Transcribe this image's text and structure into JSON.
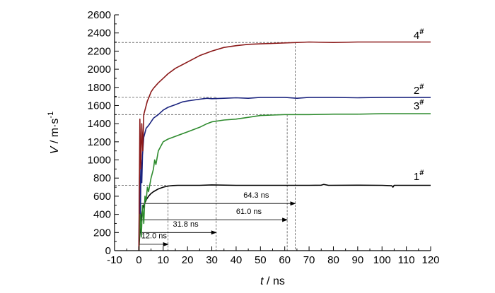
{
  "chart_data": {
    "type": "line",
    "xlabel": "t / ns",
    "ylabel": "V / m·s⁻¹",
    "xlim": [
      -10,
      120
    ],
    "ylim": [
      0,
      2600
    ],
    "xticks": [
      -10,
      0,
      10,
      20,
      30,
      40,
      50,
      60,
      70,
      80,
      90,
      100,
      110,
      120
    ],
    "yticks": [
      0,
      200,
      400,
      600,
      800,
      1000,
      1200,
      1400,
      1600,
      1800,
      2000,
      2200,
      2400,
      2600
    ],
    "series": [
      {
        "name": "1#",
        "label_main": "1",
        "label_sup": "#",
        "label_at": [
          113,
          780
        ],
        "color": "#000000",
        "steady_value": 720,
        "x": [
          0,
          0.3,
          0.6,
          1,
          1.5,
          2,
          3,
          4,
          5,
          6,
          8,
          10,
          12,
          14,
          16,
          20,
          25,
          30,
          40,
          50,
          60,
          70,
          75,
          76,
          78,
          90,
          100,
          104,
          104.5,
          105,
          110,
          120
        ],
        "y": [
          0,
          150,
          280,
          380,
          450,
          500,
          560,
          600,
          630,
          650,
          680,
          700,
          712,
          718,
          720,
          720,
          720,
          725,
          720,
          720,
          720,
          720,
          722,
          730,
          720,
          722,
          720,
          715,
          700,
          720,
          720,
          720
        ]
      },
      {
        "name": "2#",
        "label_main": "2",
        "label_sup": "#",
        "label_at": [
          113,
          1730
        ],
        "color": "#1a237e",
        "steady_value": 1690,
        "x": [
          0,
          0.3,
          0.6,
          0.9,
          1.2,
          1.5,
          2,
          2.5,
          3,
          4,
          5,
          6,
          8,
          10,
          12,
          15,
          18,
          20,
          25,
          28,
          30,
          35,
          40,
          45,
          50,
          60,
          65,
          70,
          80,
          90,
          100,
          110,
          120
        ],
        "y": [
          0,
          950,
          300,
          1000,
          750,
          1050,
          1250,
          1300,
          1350,
          1380,
          1420,
          1460,
          1500,
          1550,
          1580,
          1610,
          1640,
          1650,
          1670,
          1680,
          1675,
          1680,
          1685,
          1680,
          1690,
          1690,
          1680,
          1690,
          1690,
          1685,
          1690,
          1690,
          1690
        ]
      },
      {
        "name": "3#",
        "label_main": "3",
        "label_sup": "#",
        "label_at": [
          113,
          1555
        ],
        "color": "#2e8b2e",
        "steady_value": 1500,
        "x": [
          0,
          0.5,
          1,
          1.5,
          2,
          2.5,
          3,
          3.5,
          4,
          5,
          6,
          6.5,
          7,
          8,
          10,
          12,
          15,
          20,
          25,
          28,
          30,
          35,
          40,
          45,
          50,
          60,
          70,
          80,
          90,
          100,
          110,
          120
        ],
        "y": [
          0,
          400,
          150,
          500,
          300,
          600,
          550,
          700,
          650,
          800,
          900,
          1000,
          950,
          1100,
          1200,
          1230,
          1260,
          1310,
          1360,
          1400,
          1420,
          1440,
          1450,
          1470,
          1490,
          1500,
          1500,
          1505,
          1505,
          1510,
          1510,
          1510
        ]
      },
      {
        "name": "4#",
        "label_main": "4",
        "label_sup": "#",
        "label_at": [
          113,
          2335
        ],
        "color": "#8b1a1a",
        "steady_value": 2295,
        "x": [
          0,
          0.4,
          0.8,
          1.2,
          1.6,
          2,
          2.5,
          3,
          3.5,
          4,
          5,
          6,
          8,
          10,
          12,
          15,
          20,
          25,
          30,
          35,
          40,
          45,
          50,
          55,
          60,
          65,
          70,
          80,
          90,
          100,
          110,
          120
        ],
        "y": [
          0,
          1450,
          900,
          1400,
          1100,
          1500,
          1550,
          1600,
          1650,
          1680,
          1750,
          1790,
          1850,
          1900,
          1950,
          2010,
          2080,
          2150,
          2200,
          2240,
          2260,
          2275,
          2280,
          2285,
          2290,
          2295,
          2300,
          2295,
          2300,
          2300,
          2300,
          2300
        ]
      }
    ],
    "reference_lines": {
      "horizontal": [
        2295,
        1690,
        1500,
        720
      ],
      "vertical": [
        12.0,
        31.8,
        61.0,
        64.3
      ]
    },
    "time_arrows": [
      {
        "label": "12.0 ns",
        "end": 12.0,
        "y": 70,
        "label_at": [
          1,
          120
        ]
      },
      {
        "label": "31.8 ns",
        "end": 31.8,
        "y": 200,
        "label_at": [
          14,
          250
        ]
      },
      {
        "label": "61.0 ns",
        "end": 61.0,
        "y": 340,
        "label_at": [
          40,
          390
        ]
      },
      {
        "label": "64.3 ns",
        "end": 64.3,
        "y": 520,
        "label_at": [
          43,
          570
        ]
      }
    ]
  }
}
